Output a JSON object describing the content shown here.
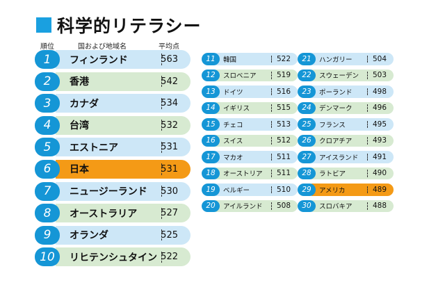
{
  "title": "科学的リテラシー",
  "headers": {
    "rank": "順位",
    "country": "国および地域名",
    "score": "平均点"
  },
  "colors": {
    "accent": "#1596d6",
    "blue_row": "#cde7f7",
    "green_row": "#d7ead1",
    "highlight": "#f49a16"
  },
  "top10": [
    {
      "rank": "1",
      "name": "フィンランド",
      "score": "563"
    },
    {
      "rank": "2",
      "name": "香港",
      "score": "542"
    },
    {
      "rank": "3",
      "name": "カナダ",
      "score": "534"
    },
    {
      "rank": "4",
      "name": "台湾",
      "score": "532"
    },
    {
      "rank": "5",
      "name": "エストニア",
      "score": "531"
    },
    {
      "rank": "6",
      "name": "日本",
      "score": "531"
    },
    {
      "rank": "7",
      "name": "ニュージーランド",
      "score": "530"
    },
    {
      "rank": "8",
      "name": "オーストラリア",
      "score": "527"
    },
    {
      "rank": "9",
      "name": "オランダ",
      "score": "525"
    },
    {
      "rank": "10",
      "name": "リヒテンシュタイン",
      "score": "522"
    }
  ],
  "ranks11_20": [
    {
      "rank": "11",
      "name": "韓国",
      "score": "522"
    },
    {
      "rank": "12",
      "name": "スロベニア",
      "score": "519"
    },
    {
      "rank": "13",
      "name": "ドイツ",
      "score": "516"
    },
    {
      "rank": "14",
      "name": "イギリス",
      "score": "515"
    },
    {
      "rank": "15",
      "name": "チェコ",
      "score": "513"
    },
    {
      "rank": "16",
      "name": "スイス",
      "score": "512"
    },
    {
      "rank": "17",
      "name": "マカオ",
      "score": "511"
    },
    {
      "rank": "18",
      "name": "オーストリア",
      "score": "511"
    },
    {
      "rank": "19",
      "name": "ベルギー",
      "score": "510"
    },
    {
      "rank": "20",
      "name": "アイルランド",
      "score": "508"
    }
  ],
  "ranks21_30": [
    {
      "rank": "21",
      "name": "ハンガリー",
      "score": "504"
    },
    {
      "rank": "22",
      "name": "スウェーデン",
      "score": "503"
    },
    {
      "rank": "23",
      "name": "ポーランド",
      "score": "498"
    },
    {
      "rank": "24",
      "name": "デンマーク",
      "score": "496"
    },
    {
      "rank": "25",
      "name": "フランス",
      "score": "495"
    },
    {
      "rank": "26",
      "name": "クロアチア",
      "score": "493"
    },
    {
      "rank": "27",
      "name": "アイスランド",
      "score": "491"
    },
    {
      "rank": "28",
      "name": "ラトビア",
      "score": "490"
    },
    {
      "rank": "29",
      "name": "アメリカ",
      "score": "489"
    },
    {
      "rank": "30",
      "name": "スロバキア",
      "score": "488"
    }
  ]
}
